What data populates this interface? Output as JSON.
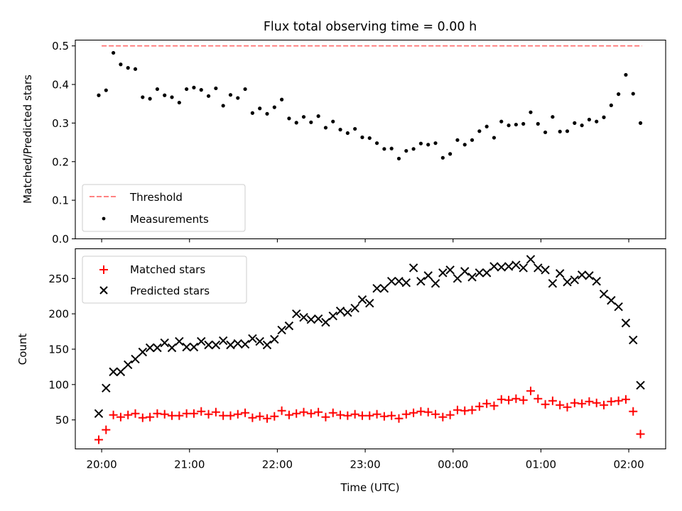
{
  "figure": {
    "title": "Flux total observing time = 0.00 h"
  },
  "chart_data": [
    {
      "type": "scatter",
      "ylabel": "Matched/Predicted stars",
      "xlabel": "",
      "ylim": [
        0,
        0.515
      ],
      "yticks": [
        0.0,
        0.1,
        0.2,
        0.3,
        0.4,
        0.5
      ],
      "ytick_labels": [
        "0.0",
        "0.1",
        "0.2",
        "0.3",
        "0.4",
        "0.5"
      ],
      "xlim_hours": [
        19.7,
        26.42
      ],
      "xticks_hours": [
        20,
        21,
        22,
        23,
        24,
        25,
        26
      ],
      "grid": false,
      "legend": {
        "placement": "lower-left",
        "entries": [
          "Threshold",
          "Measurements"
        ]
      },
      "threshold": {
        "name": "Threshold",
        "value": 0.5,
        "x": [
          "20:00",
          "02:09"
        ],
        "color": "#ff7070"
      },
      "series": [
        {
          "name": "Measurements",
          "color": "#000000",
          "x": [
            "19:58",
            "20:03",
            "20:08",
            "20:13",
            "20:18",
            "20:23",
            "20:28",
            "20:33",
            "20:38",
            "20:43",
            "20:48",
            "20:53",
            "20:58",
            "21:03",
            "21:08",
            "21:13",
            "21:18",
            "21:23",
            "21:28",
            "21:33",
            "21:38",
            "21:43",
            "21:48",
            "21:53",
            "21:58",
            "22:03",
            "22:08",
            "22:13",
            "22:18",
            "22:23",
            "22:28",
            "22:33",
            "22:38",
            "22:43",
            "22:48",
            "22:53",
            "22:58",
            "23:03",
            "23:08",
            "23:13",
            "23:18",
            "23:23",
            "23:28",
            "23:33",
            "23:38",
            "23:43",
            "23:48",
            "23:53",
            "23:58",
            "00:03",
            "00:08",
            "00:13",
            "00:18",
            "00:23",
            "00:28",
            "00:33",
            "00:38",
            "00:43",
            "00:48",
            "00:53",
            "00:58",
            "01:03",
            "01:08",
            "01:13",
            "01:18",
            "01:23",
            "01:28",
            "01:33",
            "01:38",
            "01:43",
            "01:48",
            "01:53",
            "01:58",
            "02:03",
            "02:08"
          ],
          "y": [
            0.372,
            0.385,
            0.482,
            0.452,
            0.443,
            0.44,
            0.367,
            0.363,
            0.388,
            0.372,
            0.367,
            0.353,
            0.388,
            0.392,
            0.386,
            0.37,
            0.39,
            0.345,
            0.373,
            0.365,
            0.388,
            0.326,
            0.338,
            0.324,
            0.341,
            0.361,
            0.312,
            0.301,
            0.316,
            0.302,
            0.318,
            0.288,
            0.304,
            0.283,
            0.274,
            0.285,
            0.263,
            0.261,
            0.248,
            0.233,
            0.234,
            0.208,
            0.228,
            0.233,
            0.247,
            0.244,
            0.248,
            0.21,
            0.22,
            0.256,
            0.244,
            0.256,
            0.279,
            0.291,
            0.262,
            0.304,
            0.294,
            0.296,
            0.298,
            0.328,
            0.298,
            0.276,
            0.316,
            0.278,
            0.279,
            0.3,
            0.294,
            0.309,
            0.304,
            0.315,
            0.346,
            0.375,
            0.425,
            0.376,
            0.3
          ]
        }
      ]
    },
    {
      "type": "scatter",
      "ylabel": "Count",
      "xlabel": "Time (UTC)",
      "ylim": [
        9,
        292
      ],
      "yticks": [
        50,
        100,
        150,
        200,
        250
      ],
      "ytick_labels": [
        "50",
        "100",
        "150",
        "200",
        "250"
      ],
      "xlim_hours": [
        19.7,
        26.42
      ],
      "xticks_hours": [
        20,
        21,
        22,
        23,
        24,
        25,
        26
      ],
      "xtick_labels": [
        "20:00",
        "21:00",
        "22:00",
        "23:00",
        "00:00",
        "01:00",
        "02:00"
      ],
      "grid": false,
      "legend": {
        "placement": "upper-left",
        "entries": [
          "Matched stars",
          "Predicted stars"
        ]
      },
      "series": [
        {
          "name": "Matched stars",
          "marker": "+",
          "color": "#ff0000",
          "x": [
            "19:58",
            "20:03",
            "20:08",
            "20:13",
            "20:18",
            "20:23",
            "20:28",
            "20:33",
            "20:38",
            "20:43",
            "20:48",
            "20:53",
            "20:58",
            "21:03",
            "21:08",
            "21:13",
            "21:18",
            "21:23",
            "21:28",
            "21:33",
            "21:38",
            "21:43",
            "21:48",
            "21:53",
            "21:58",
            "22:03",
            "22:08",
            "22:13",
            "22:18",
            "22:23",
            "22:28",
            "22:33",
            "22:38",
            "22:43",
            "22:48",
            "22:53",
            "22:58",
            "23:03",
            "23:08",
            "23:13",
            "23:18",
            "23:23",
            "23:28",
            "23:33",
            "23:38",
            "23:43",
            "23:48",
            "23:53",
            "23:58",
            "00:03",
            "00:08",
            "00:13",
            "00:18",
            "00:23",
            "00:28",
            "00:33",
            "00:38",
            "00:43",
            "00:48",
            "00:53",
            "00:58",
            "01:03",
            "01:08",
            "01:13",
            "01:18",
            "01:23",
            "01:28",
            "01:33",
            "01:38",
            "01:43",
            "01:48",
            "01:53",
            "01:58",
            "02:03",
            "02:08"
          ],
          "y": [
            22,
            36,
            57,
            54,
            57,
            59,
            53,
            54,
            59,
            58,
            56,
            56,
            59,
            59,
            62,
            58,
            61,
            56,
            56,
            58,
            60,
            53,
            55,
            52,
            55,
            63,
            57,
            59,
            61,
            59,
            61,
            54,
            60,
            57,
            56,
            58,
            56,
            56,
            58,
            55,
            56,
            52,
            58,
            60,
            62,
            61,
            58,
            54,
            57,
            64,
            63,
            64,
            69,
            73,
            70,
            79,
            78,
            80,
            78,
            91,
            80,
            72,
            77,
            71,
            68,
            74,
            73,
            76,
            74,
            71,
            76,
            77,
            79,
            62,
            30
          ]
        },
        {
          "name": "Predicted stars",
          "marker": "x",
          "color": "#000000",
          "x": [
            "19:58",
            "20:03",
            "20:08",
            "20:13",
            "20:18",
            "20:23",
            "20:28",
            "20:33",
            "20:38",
            "20:43",
            "20:48",
            "20:53",
            "20:58",
            "21:03",
            "21:08",
            "21:13",
            "21:18",
            "21:23",
            "21:28",
            "21:33",
            "21:38",
            "21:43",
            "21:48",
            "21:53",
            "21:58",
            "22:03",
            "22:08",
            "22:13",
            "22:18",
            "22:23",
            "22:28",
            "22:33",
            "22:38",
            "22:43",
            "22:48",
            "22:53",
            "22:58",
            "23:03",
            "23:08",
            "23:13",
            "23:18",
            "23:23",
            "23:28",
            "23:33",
            "23:38",
            "23:43",
            "23:48",
            "23:53",
            "23:58",
            "00:03",
            "00:08",
            "00:13",
            "00:18",
            "00:23",
            "00:28",
            "00:33",
            "00:38",
            "00:43",
            "00:48",
            "00:53",
            "00:58",
            "01:03",
            "01:08",
            "01:13",
            "01:18",
            "01:23",
            "01:28",
            "01:33",
            "01:38",
            "01:43",
            "01:48",
            "01:53",
            "01:58",
            "02:03",
            "02:08"
          ],
          "y": [
            59,
            95,
            118,
            118,
            128,
            136,
            146,
            152,
            152,
            159,
            152,
            161,
            153,
            153,
            161,
            156,
            156,
            162,
            156,
            158,
            157,
            165,
            161,
            156,
            164,
            177,
            183,
            200,
            195,
            192,
            193,
            188,
            197,
            204,
            202,
            208,
            220,
            215,
            236,
            236,
            246,
            246,
            244,
            265,
            246,
            254,
            243,
            258,
            262,
            250,
            260,
            252,
            258,
            258,
            267,
            266,
            267,
            269,
            265,
            277,
            265,
            262,
            243,
            257,
            245,
            248,
            255,
            254,
            246,
            228,
            219,
            210,
            187,
            163,
            99
          ]
        }
      ]
    }
  ]
}
